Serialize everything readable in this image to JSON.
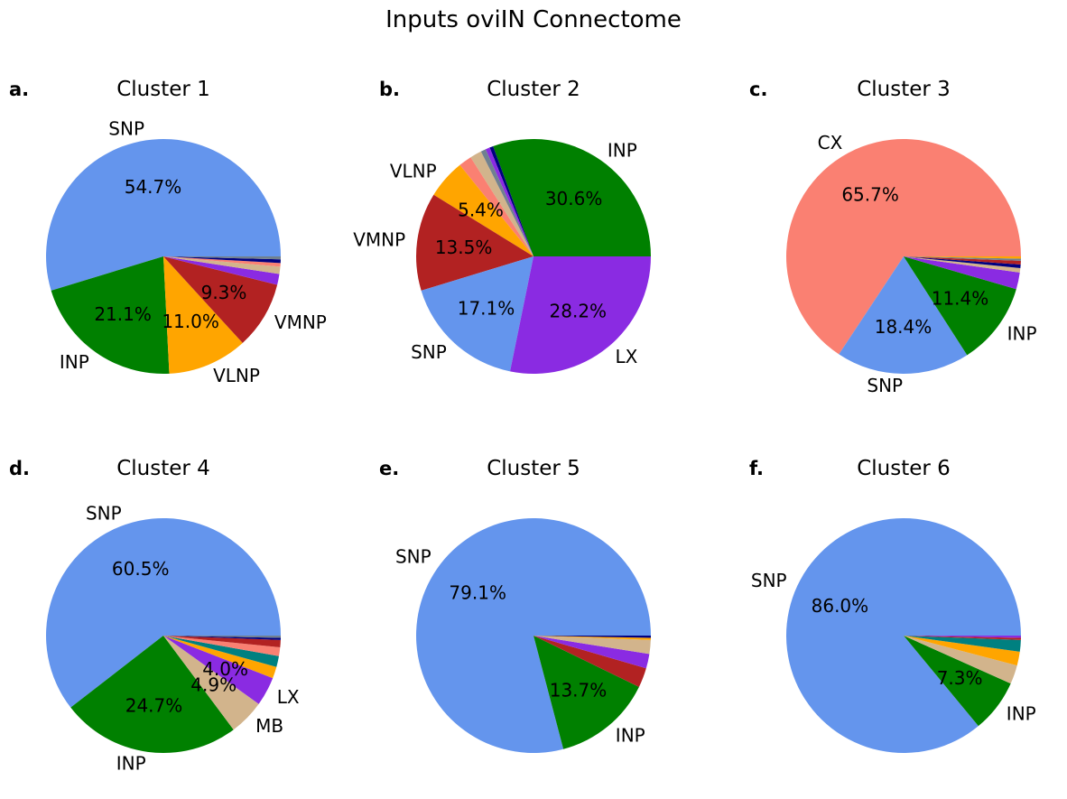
{
  "figure": {
    "title": "Inputs oviIN Connectome"
  },
  "colors": {
    "SNP": "#6495ED",
    "INP": "#008000",
    "VLNP": "#FFA500",
    "VMNP": "#B22222",
    "LX": "#8A2BE2",
    "CX": "#FA8072",
    "MB": "#D2B48C",
    "TEAL": "#008080",
    "NAVY": "#000080",
    "GREY": "#708090"
  },
  "chart_data": [
    {
      "type": "pie",
      "panel": "a.",
      "title": "Cluster 1",
      "slices": [
        {
          "label": "SNP",
          "value": 54.7,
          "pct": "54.7%",
          "color": "#6495ED"
        },
        {
          "label": "INP",
          "value": 21.1,
          "pct": "21.1%",
          "color": "#008000"
        },
        {
          "label": "VLNP",
          "value": 11.0,
          "pct": "11.0%",
          "color": "#FFA500"
        },
        {
          "label": "VMNP",
          "value": 9.3,
          "pct": "9.3%",
          "color": "#B22222"
        },
        {
          "label": "",
          "value": 1.5,
          "pct": "",
          "color": "#8A2BE2"
        },
        {
          "label": "",
          "value": 1.0,
          "pct": "",
          "color": "#D2B48C"
        },
        {
          "label": "",
          "value": 0.5,
          "pct": "",
          "color": "#FA8072"
        },
        {
          "label": "",
          "value": 0.5,
          "pct": "",
          "color": "#000080"
        },
        {
          "label": "",
          "value": 0.4,
          "pct": "",
          "color": "#708090"
        }
      ]
    },
    {
      "type": "pie",
      "panel": "b.",
      "title": "Cluster 2",
      "slices": [
        {
          "label": "INP",
          "value": 30.6,
          "pct": "30.6%",
          "color": "#008000"
        },
        {
          "label": "",
          "value": 0.5,
          "pct": "",
          "color": "#000080"
        },
        {
          "label": "",
          "value": 0.6,
          "pct": "",
          "color": "#8A2BE2"
        },
        {
          "label": "",
          "value": 0.7,
          "pct": "",
          "color": "#708090"
        },
        {
          "label": "",
          "value": 1.6,
          "pct": "",
          "color": "#D2B48C"
        },
        {
          "label": "",
          "value": 1.8,
          "pct": "",
          "color": "#FA8072"
        },
        {
          "label": "VLNP",
          "value": 5.4,
          "pct": "5.4%",
          "color": "#FFA500"
        },
        {
          "label": "VMNP",
          "value": 13.5,
          "pct": "13.5%",
          "color": "#B22222"
        },
        {
          "label": "SNP",
          "value": 17.1,
          "pct": "17.1%",
          "color": "#6495ED"
        },
        {
          "label": "LX",
          "value": 28.2,
          "pct": "28.2%",
          "color": "#8A2BE2"
        }
      ]
    },
    {
      "type": "pie",
      "panel": "c.",
      "title": "Cluster 3",
      "slices": [
        {
          "label": "CX",
          "value": 65.7,
          "pct": "65.7%",
          "color": "#FA8072"
        },
        {
          "label": "SNP",
          "value": 18.4,
          "pct": "18.4%",
          "color": "#6495ED"
        },
        {
          "label": "INP",
          "value": 11.4,
          "pct": "11.4%",
          "color": "#008000"
        },
        {
          "label": "",
          "value": 2.3,
          "pct": "",
          "color": "#8A2BE2"
        },
        {
          "label": "",
          "value": 0.6,
          "pct": "",
          "color": "#D2B48C"
        },
        {
          "label": "",
          "value": 0.5,
          "pct": "",
          "color": "#000080"
        },
        {
          "label": "",
          "value": 0.5,
          "pct": "",
          "color": "#B22222"
        },
        {
          "label": "",
          "value": 0.3,
          "pct": "",
          "color": "#708090"
        },
        {
          "label": "",
          "value": 0.3,
          "pct": "",
          "color": "#FFA500"
        }
      ]
    },
    {
      "type": "pie",
      "panel": "d.",
      "title": "Cluster 4",
      "slices": [
        {
          "label": "SNP",
          "value": 60.5,
          "pct": "60.5%",
          "color": "#6495ED"
        },
        {
          "label": "INP",
          "value": 24.7,
          "pct": "24.7%",
          "color": "#008000"
        },
        {
          "label": "MB",
          "value": 4.9,
          "pct": "4.9%",
          "color": "#D2B48C"
        },
        {
          "label": "LX",
          "value": 4.0,
          "pct": "4.0%",
          "color": "#8A2BE2"
        },
        {
          "label": "",
          "value": 1.6,
          "pct": "",
          "color": "#FFA500"
        },
        {
          "label": "",
          "value": 1.5,
          "pct": "",
          "color": "#008080"
        },
        {
          "label": "",
          "value": 1.2,
          "pct": "",
          "color": "#FA8072"
        },
        {
          "label": "",
          "value": 1.0,
          "pct": "",
          "color": "#B22222"
        },
        {
          "label": "",
          "value": 0.3,
          "pct": "",
          "color": "#000080"
        },
        {
          "label": "",
          "value": 0.3,
          "pct": "",
          "color": "#708090"
        }
      ]
    },
    {
      "type": "pie",
      "panel": "e.",
      "title": "Cluster 5",
      "slices": [
        {
          "label": "SNP",
          "value": 79.1,
          "pct": "79.1%",
          "color": "#6495ED"
        },
        {
          "label": "INP",
          "value": 13.7,
          "pct": "13.7%",
          "color": "#008000"
        },
        {
          "label": "",
          "value": 2.7,
          "pct": "",
          "color": "#B22222"
        },
        {
          "label": "",
          "value": 2.0,
          "pct": "",
          "color": "#8A2BE2"
        },
        {
          "label": "",
          "value": 1.9,
          "pct": "",
          "color": "#D2B48C"
        },
        {
          "label": "",
          "value": 0.3,
          "pct": "",
          "color": "#FFA500"
        },
        {
          "label": "",
          "value": 0.3,
          "pct": "",
          "color": "#000080"
        }
      ]
    },
    {
      "type": "pie",
      "panel": "f.",
      "title": "Cluster 6",
      "slices": [
        {
          "label": "SNP",
          "value": 86.0,
          "pct": "86.0%",
          "color": "#6495ED"
        },
        {
          "label": "INP",
          "value": 7.3,
          "pct": "7.3%",
          "color": "#008000"
        },
        {
          "label": "",
          "value": 2.6,
          "pct": "",
          "color": "#D2B48C"
        },
        {
          "label": "",
          "value": 1.9,
          "pct": "",
          "color": "#FFA500"
        },
        {
          "label": "",
          "value": 1.6,
          "pct": "",
          "color": "#008080"
        },
        {
          "label": "",
          "value": 0.3,
          "pct": "",
          "color": "#B22222"
        },
        {
          "label": "",
          "value": 0.3,
          "pct": "",
          "color": "#8A2BE2"
        }
      ]
    }
  ]
}
